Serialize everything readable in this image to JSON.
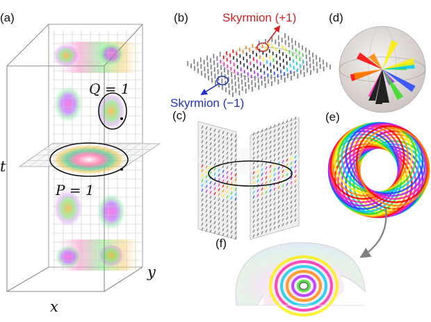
{
  "panels": {
    "a": "(a)",
    "b": "(b)",
    "c": "(c)",
    "d": "(d)",
    "e": "(e)",
    "f": "(f)"
  },
  "annotations": {
    "q": "Q = 1",
    "p": "P = 1",
    "t_axis": "t",
    "x_axis": "x",
    "y_axis": "y",
    "skyrmion_plus": "Skyrmion (+1)",
    "skyrmion_minus": "Skyrmion (−1)"
  },
  "colors": {
    "skyrmion_plus": "#d42020",
    "skyrmion_minus": "#2030c0",
    "rainbow": [
      "#ff0000",
      "#ff8800",
      "#ffee00",
      "#33dd22",
      "#00ccee",
      "#2244ff",
      "#aa22ff",
      "#ff22aa"
    ],
    "arrow_gray": "#7a7a7a",
    "bg_wash": "#dfe8ef"
  }
}
